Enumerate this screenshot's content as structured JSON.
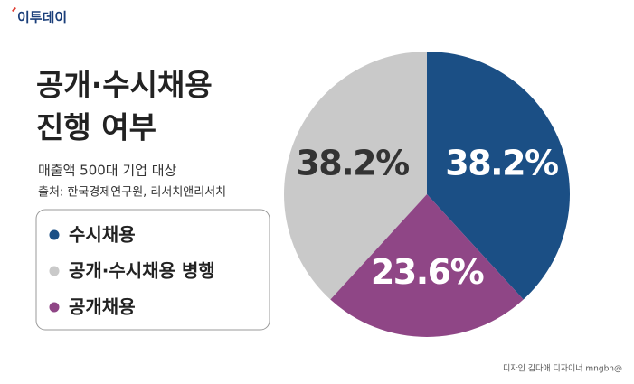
{
  "header": {
    "logo": "이투데이"
  },
  "chart_data": {
    "type": "pie",
    "title": [
      "공개·수시채용",
      "진행 여부"
    ],
    "subtitle": "매출액 500대 기업 대상",
    "source": "출처: 한국경제연구원, 리서치앤리서치",
    "categories": [
      "수시채용",
      "공개·수시채용 병행",
      "공개채용"
    ],
    "values": [
      38.2,
      38.2,
      23.6
    ],
    "value_labels": [
      "38.2%",
      "38.2%",
      "23.6%"
    ],
    "colors": [
      "#1b4f85",
      "#c9c9c9",
      "#8f4686"
    ],
    "label_colors": [
      "#ffffff",
      "#333333",
      "#ffffff"
    ]
  },
  "footer": {
    "credit": "디자인 김다애 디자이너 mngbn@"
  }
}
